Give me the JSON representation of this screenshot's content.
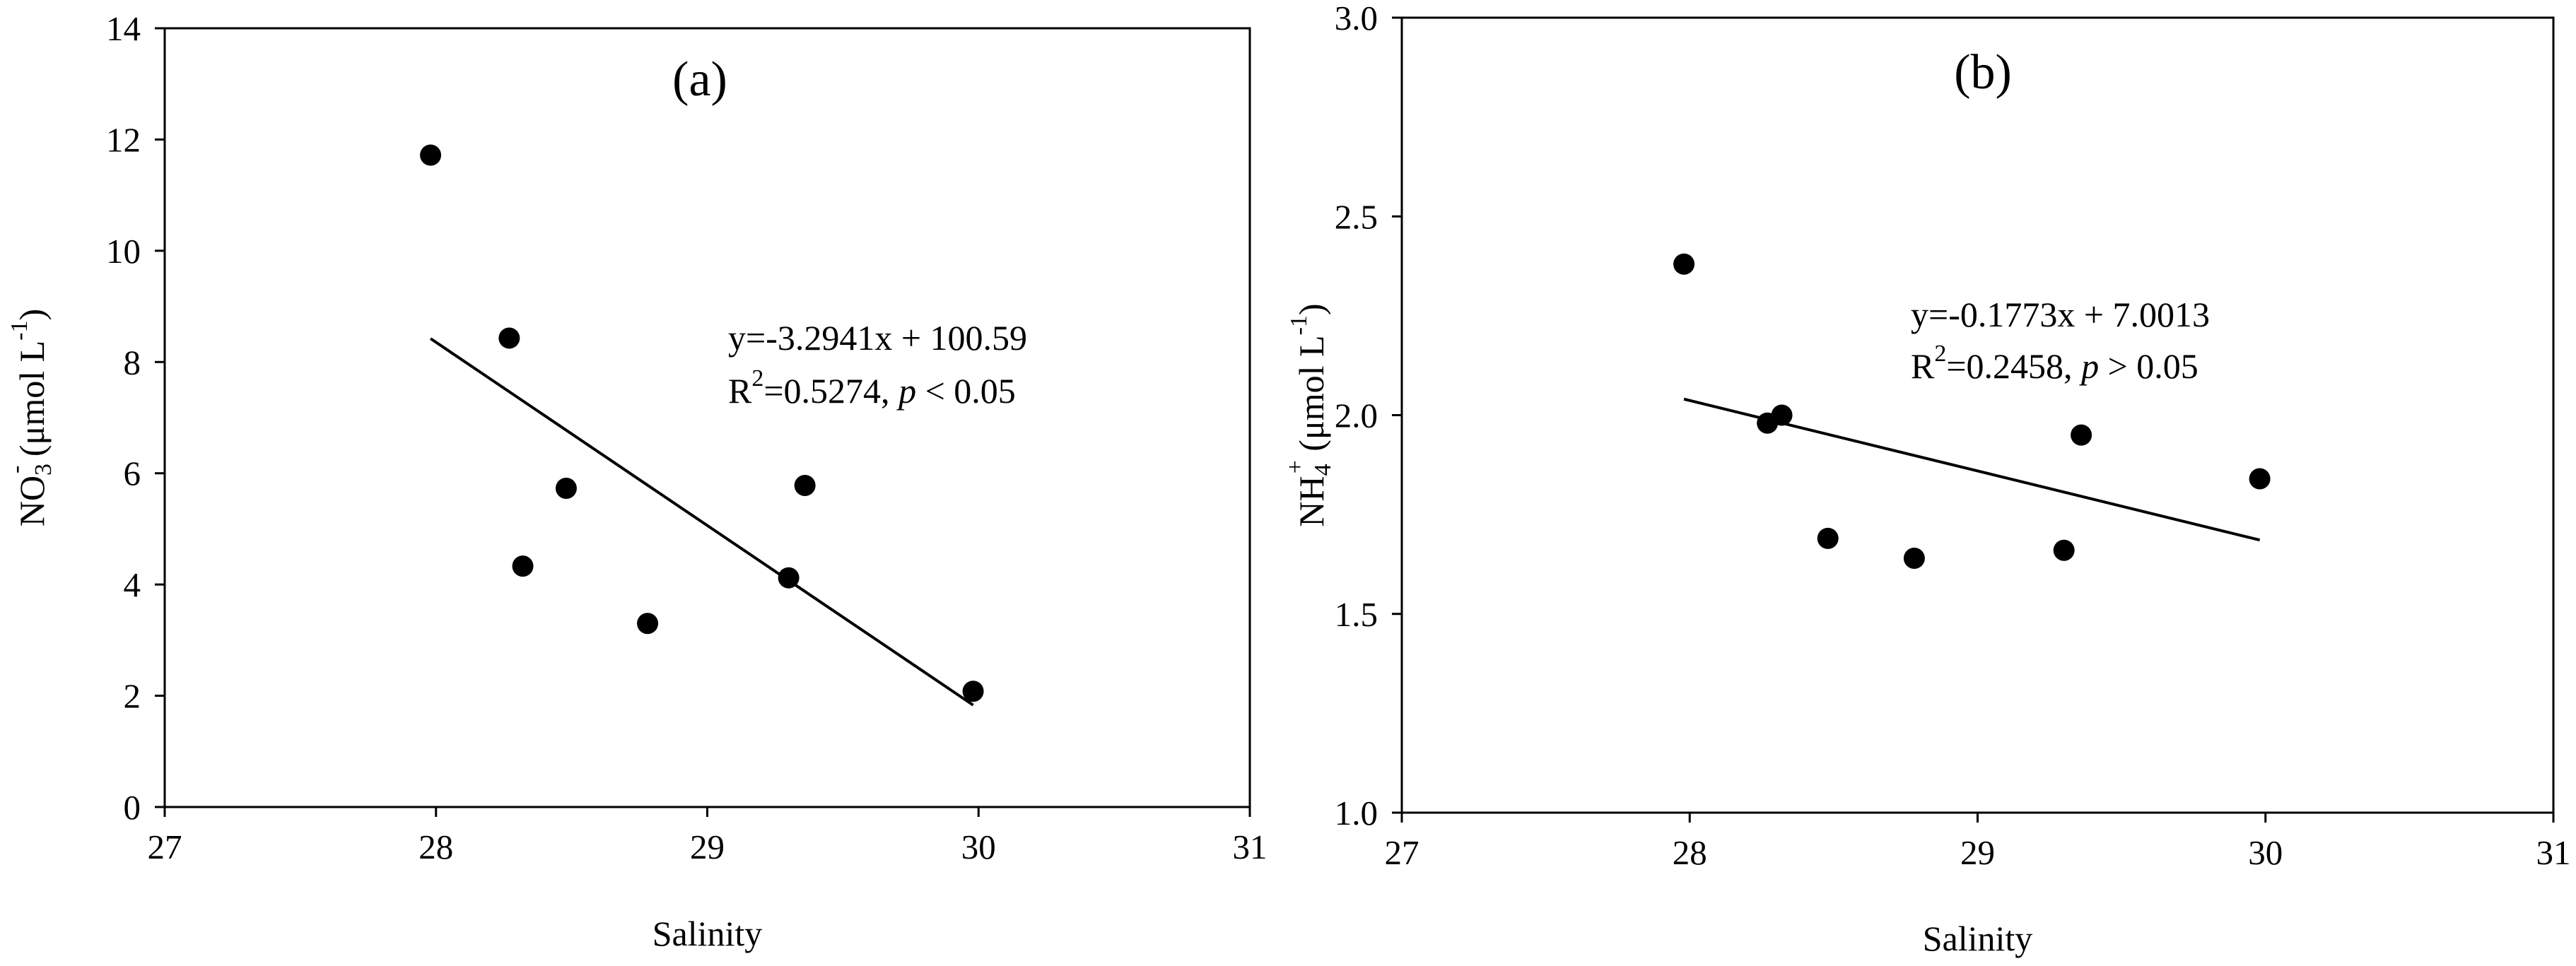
{
  "chart_data": [
    {
      "type": "scatter",
      "title": "(a)",
      "xlabel": "Salinity",
      "ylabel": "NO3- (μmol L-1)",
      "ylabel_parts": {
        "base": "NO",
        "sub": "3",
        "sup": "-",
        "unit": " (μmol L",
        "unit_sup": "-1",
        "close": ")"
      },
      "xlim": [
        27,
        31
      ],
      "ylim": [
        0,
        14
      ],
      "xticks": [
        27,
        28,
        29,
        30,
        31
      ],
      "yticks": [
        0,
        2,
        4,
        6,
        8,
        10,
        12,
        14
      ],
      "grid": false,
      "marker_color": "#000000",
      "points": [
        {
          "x": 27.98,
          "y": 11.72
        },
        {
          "x": 28.27,
          "y": 8.43
        },
        {
          "x": 28.32,
          "y": 4.33
        },
        {
          "x": 28.48,
          "y": 5.73
        },
        {
          "x": 28.78,
          "y": 3.3
        },
        {
          "x": 29.3,
          "y": 4.12
        },
        {
          "x": 29.36,
          "y": 5.78
        },
        {
          "x": 29.98,
          "y": 2.08
        }
      ],
      "trendline": {
        "slope": -3.2941,
        "intercept": 100.59,
        "x_range": [
          27.98,
          29.98
        ]
      },
      "annotation": {
        "equation": "y=-3.2941x + 100.59",
        "r2_prefix": "R",
        "r2_sup": "2",
        "r2_rest": "=0.5274, ",
        "p_symbol": "p",
        "p_rest": " < 0.05"
      }
    },
    {
      "type": "scatter",
      "title": "(b)",
      "xlabel": "Salinity",
      "ylabel": "NH4+ (μmol L-1)",
      "ylabel_parts": {
        "base": "NH",
        "sub": "4",
        "sup": "+",
        "unit": " (μmol L",
        "unit_sup": "-1",
        "close": ")"
      },
      "xlim": [
        27,
        31
      ],
      "ylim": [
        1.0,
        3.0
      ],
      "xticks": [
        27,
        28,
        29,
        30,
        31
      ],
      "yticks": [
        "1.0",
        "1.5",
        "2.0",
        "2.5",
        "3.0"
      ],
      "grid": false,
      "marker_color": "#000000",
      "points": [
        {
          "x": 27.98,
          "y": 2.38
        },
        {
          "x": 28.27,
          "y": 1.98
        },
        {
          "x": 28.32,
          "y": 2.0
        },
        {
          "x": 28.48,
          "y": 1.69
        },
        {
          "x": 28.78,
          "y": 1.64
        },
        {
          "x": 29.3,
          "y": 1.66
        },
        {
          "x": 29.36,
          "y": 1.95
        },
        {
          "x": 29.98,
          "y": 1.84
        }
      ],
      "trendline": {
        "slope": -0.1773,
        "intercept": 7.0013,
        "x_range": [
          27.98,
          29.98
        ]
      },
      "annotation": {
        "equation": "y=-0.1773x + 7.0013",
        "r2_prefix": "R",
        "r2_sup": "2",
        "r2_rest": "=0.2458, ",
        "p_symbol": "p",
        "p_rest": " > 0.05"
      }
    }
  ]
}
